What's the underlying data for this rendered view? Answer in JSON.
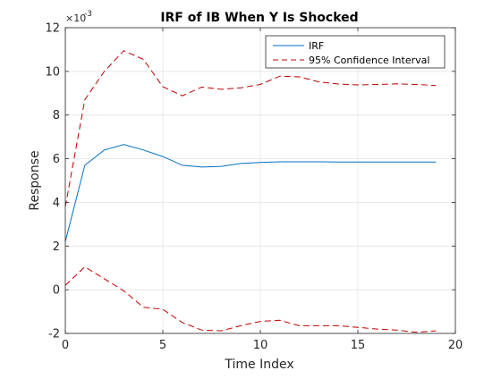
{
  "chart_data": {
    "type": "line",
    "title": "IRF of IB When Y Is Shocked",
    "xlabel": "Time Index",
    "ylabel": "Response",
    "y_exponent_label": "×10",
    "y_exponent_power": "-3",
    "xlim": [
      0,
      20
    ],
    "ylim": [
      -2,
      12
    ],
    "x_ticks": [
      0,
      5,
      10,
      15,
      20
    ],
    "y_ticks": [
      -2,
      0,
      2,
      4,
      6,
      8,
      10,
      12
    ],
    "grid": true,
    "legend_position": "top-right",
    "x": [
      0,
      1,
      2,
      3,
      4,
      5,
      6,
      7,
      8,
      9,
      10,
      11,
      12,
      13,
      14,
      15,
      16,
      17,
      18,
      19
    ],
    "series": [
      {
        "name": "IRF",
        "color": "#0072BD",
        "line_style": "solid",
        "values": [
          2.2,
          5.7,
          6.4,
          6.65,
          6.4,
          6.1,
          5.7,
          5.62,
          5.65,
          5.78,
          5.83,
          5.86,
          5.86,
          5.86,
          5.85,
          5.85,
          5.85,
          5.85,
          5.85,
          5.85
        ]
      },
      {
        "name": "95% Confidence Interval",
        "color": "#C00000",
        "line_style": "dashed",
        "values": [
          3.8,
          8.7,
          10.0,
          10.95,
          10.55,
          9.3,
          8.88,
          9.28,
          9.18,
          9.25,
          9.4,
          9.78,
          9.75,
          9.52,
          9.42,
          9.38,
          9.4,
          9.43,
          9.4,
          9.35
        ]
      },
      {
        "color": "#C00000",
        "line_style": "dashed",
        "values": [
          0.2,
          1.05,
          0.5,
          -0.05,
          -0.8,
          -0.9,
          -1.5,
          -1.85,
          -1.88,
          -1.65,
          -1.45,
          -1.4,
          -1.65,
          -1.65,
          -1.65,
          -1.72,
          -1.8,
          -1.85,
          -1.95,
          -1.88
        ]
      }
    ]
  }
}
